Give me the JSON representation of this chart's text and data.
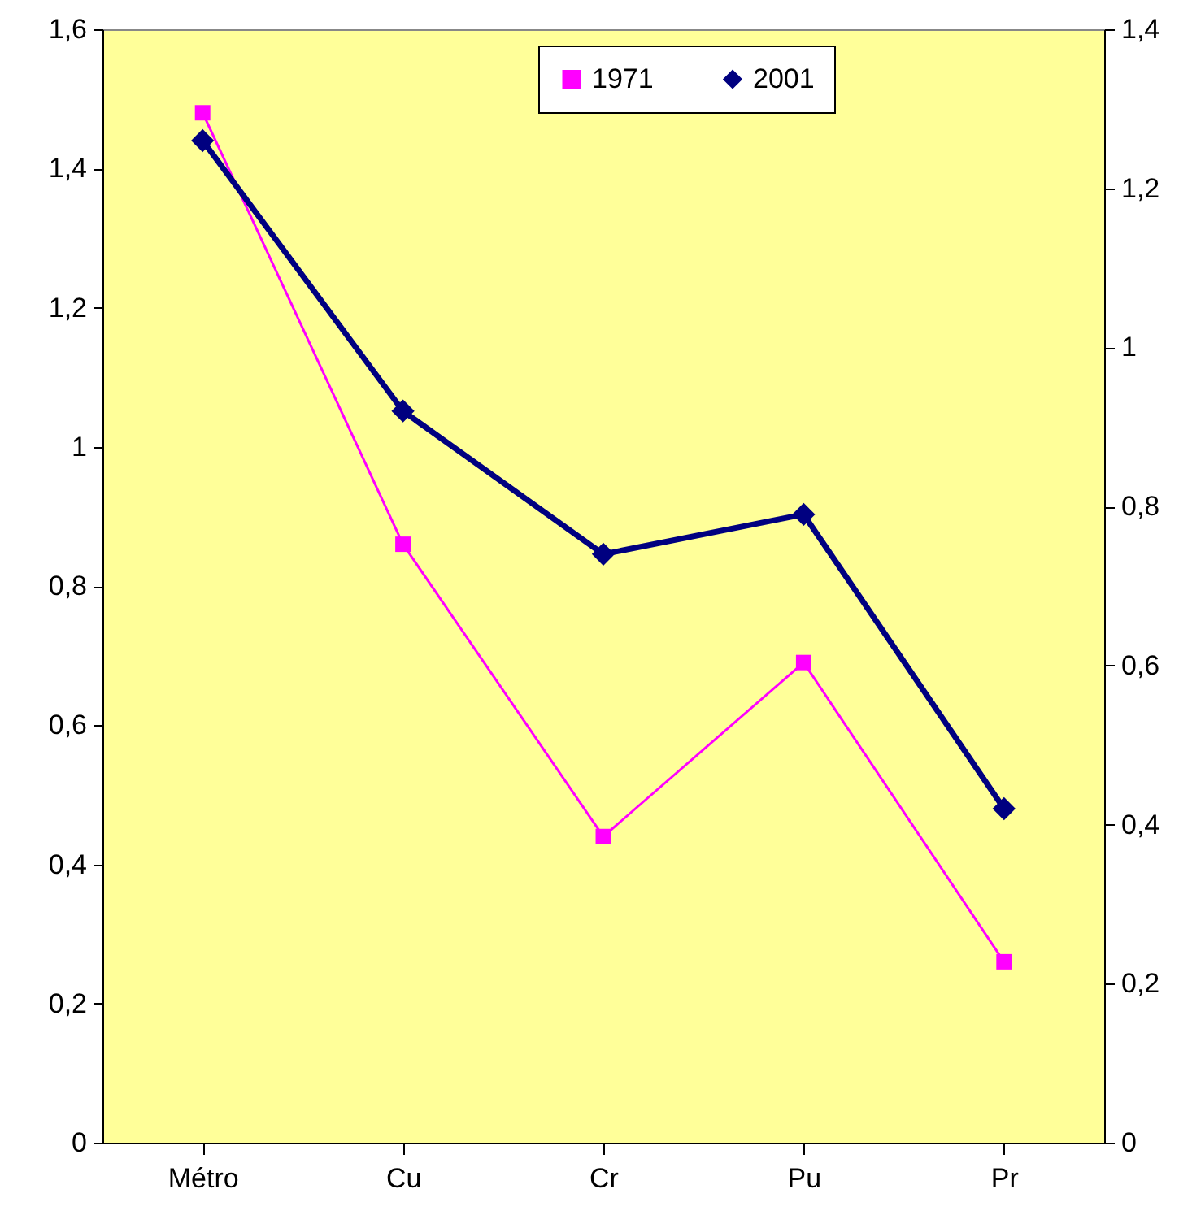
{
  "chart_data": {
    "type": "line",
    "categories": [
      "Métro",
      "Cu",
      "Cr",
      "Pu",
      "Pr"
    ],
    "series": [
      {
        "name": "1971",
        "color": "#ff00ff",
        "marker": "square",
        "values": [
          1.48,
          0.86,
          0.44,
          0.69,
          0.26
        ]
      },
      {
        "name": "2001",
        "color": "#000080",
        "marker": "diamond",
        "axis": "y2",
        "values": [
          1.26,
          0.92,
          0.74,
          0.79,
          0.42
        ]
      }
    ],
    "ylim": [
      0,
      1.6
    ],
    "yticks": [
      0,
      {
        "value": 0.2,
        "label": "0,2"
      },
      {
        "value": 0.4,
        "label": "0,4"
      },
      {
        "value": 0.6,
        "label": "0,6"
      },
      {
        "value": 0.8,
        "label": "0,8"
      },
      1,
      {
        "value": 1.2,
        "label": "1,2"
      },
      {
        "value": 1.4,
        "label": "1,4"
      },
      {
        "value": 1.6,
        "label": "1,6"
      }
    ],
    "y2lim": [
      0,
      1.4
    ],
    "y2ticks": [
      0,
      {
        "value": 0.2,
        "label": "0,2"
      },
      {
        "value": 0.4,
        "label": "0,4"
      },
      {
        "value": 0.6,
        "label": "0,6"
      },
      {
        "value": 0.8,
        "label": "0,8"
      },
      1,
      {
        "value": 1.2,
        "label": "1,2"
      },
      {
        "value": 1.4,
        "label": "1,4"
      }
    ],
    "legend": "top",
    "grid": false
  }
}
